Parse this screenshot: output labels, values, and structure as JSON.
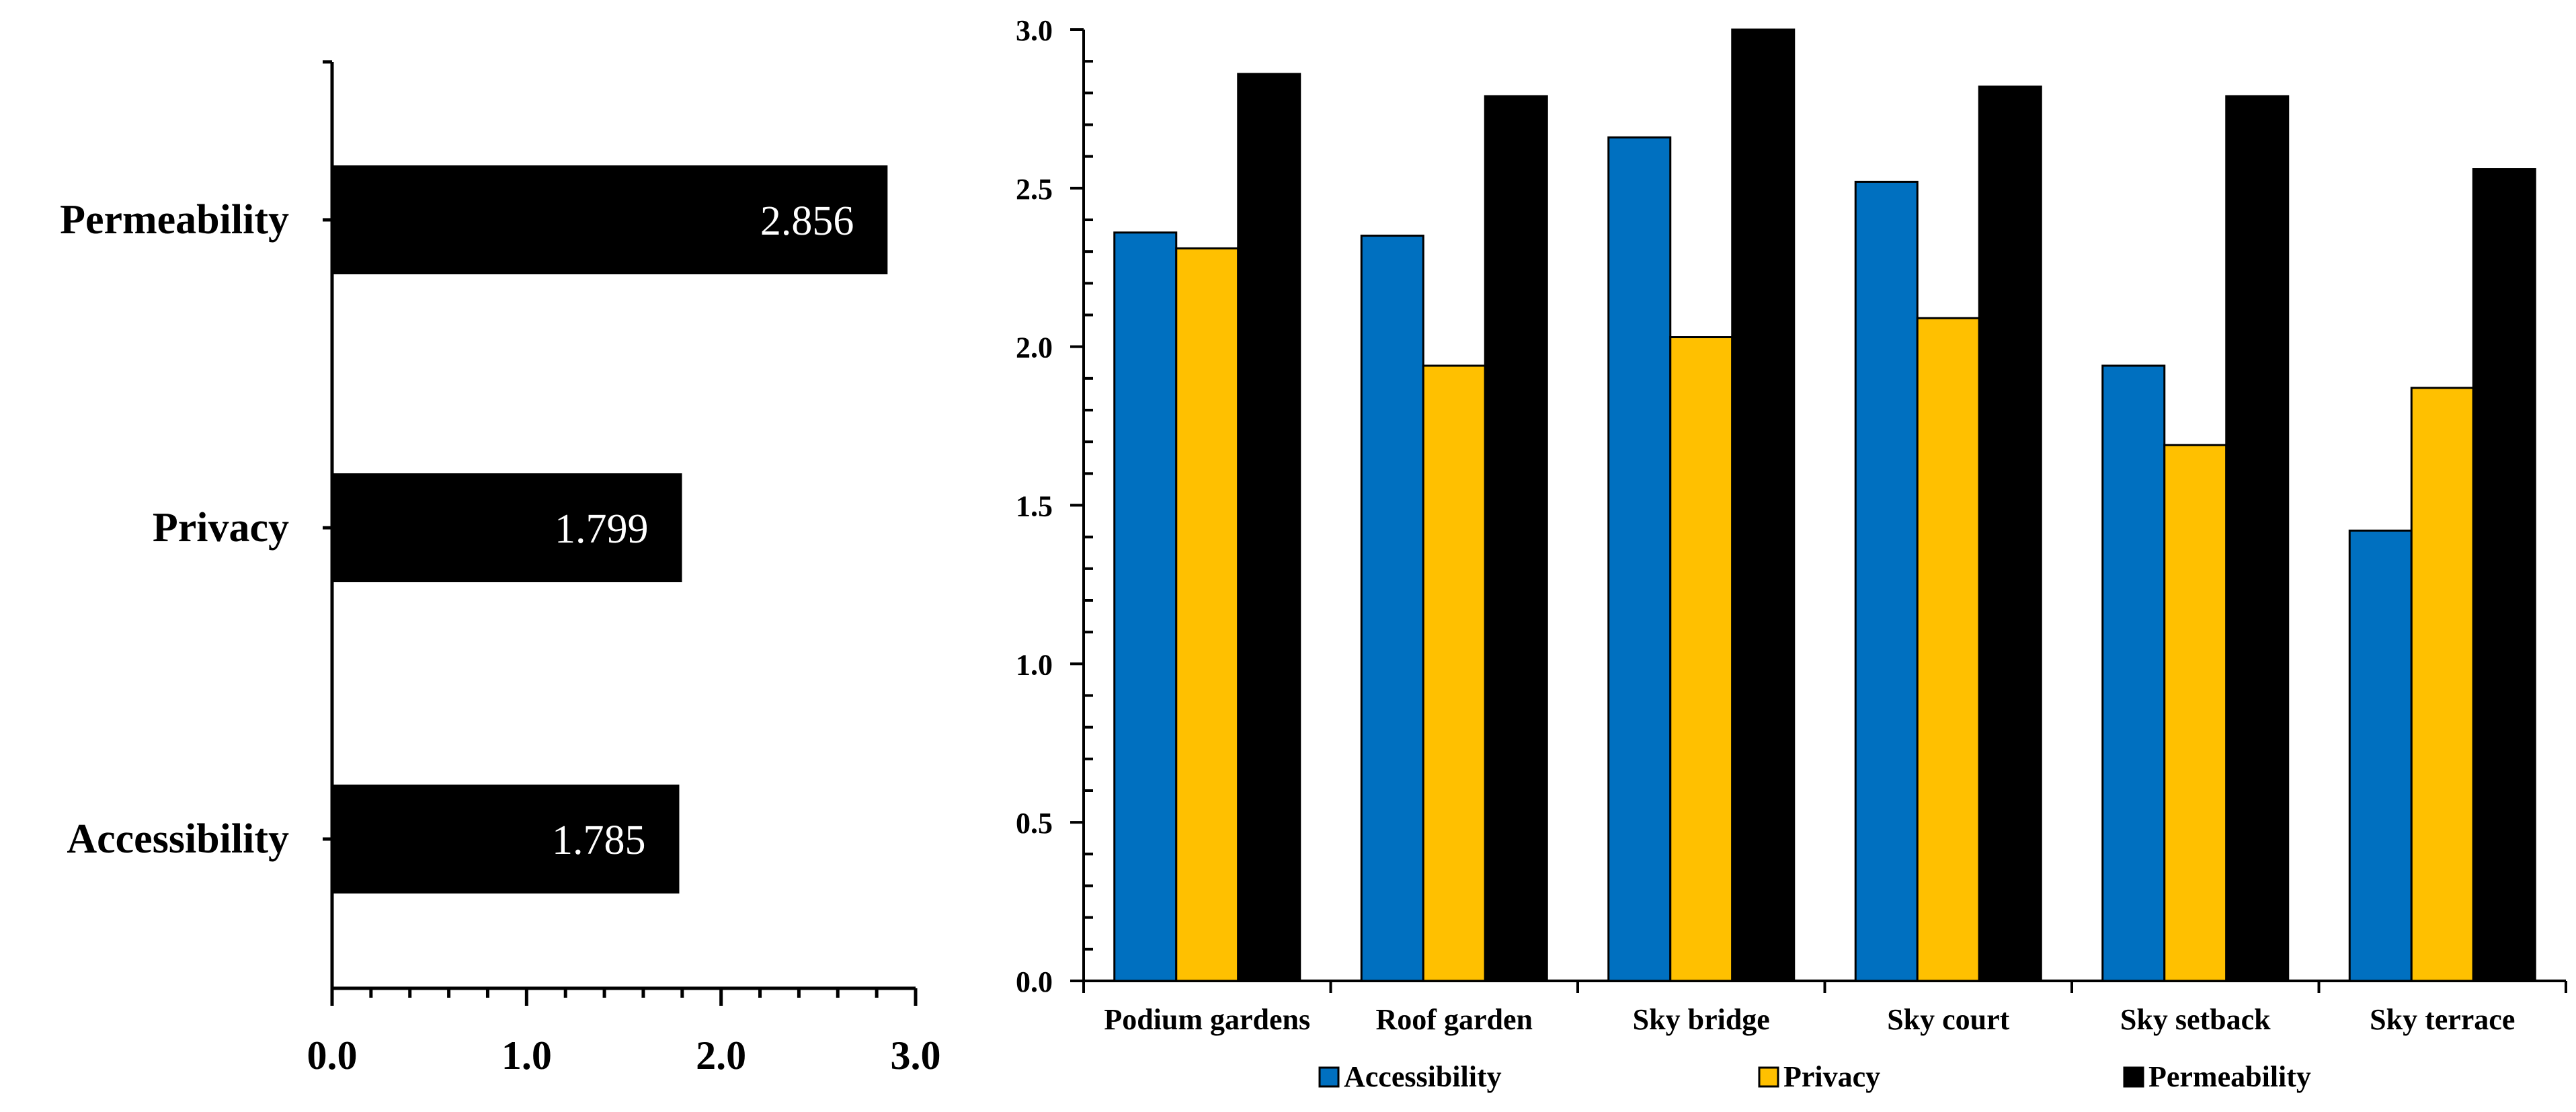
{
  "chart_data": [
    {
      "type": "bar",
      "orientation": "horizontal",
      "categories": [
        "Permeability",
        "Privacy",
        "Accessibility"
      ],
      "values": [
        2.856,
        1.799,
        1.785
      ],
      "value_labels": [
        "2.856",
        "1.799",
        "1.785"
      ],
      "xlim": [
        0,
        3
      ],
      "x_ticks": [
        "0.0",
        "1.0",
        "2.0",
        "3.0"
      ],
      "title": "",
      "xlabel": "",
      "ylabel": "",
      "bar_color": "#000000"
    },
    {
      "type": "bar",
      "orientation": "vertical",
      "categories": [
        "Podium gardens",
        "Roof garden",
        "Sky bridge",
        "Sky court",
        "Sky setback",
        "Sky terrace"
      ],
      "series": [
        {
          "name": "Accessibility",
          "color": "#0070C0",
          "values": [
            2.36,
            2.35,
            2.66,
            2.52,
            1.94,
            1.42
          ]
        },
        {
          "name": "Privacy",
          "color": "#FFC000",
          "values": [
            2.31,
            1.94,
            2.03,
            2.09,
            1.69,
            1.87
          ]
        },
        {
          "name": "Permeability",
          "color": "#000000",
          "values": [
            2.86,
            2.79,
            3.0,
            2.82,
            2.79,
            2.56
          ]
        }
      ],
      "ylim": [
        0,
        3
      ],
      "y_ticks": [
        "0.0",
        "0.5",
        "1.0",
        "1.5",
        "2.0",
        "2.5",
        "3.0"
      ],
      "title": "",
      "xlabel": "",
      "ylabel": "",
      "legend_position": "bottom"
    }
  ]
}
